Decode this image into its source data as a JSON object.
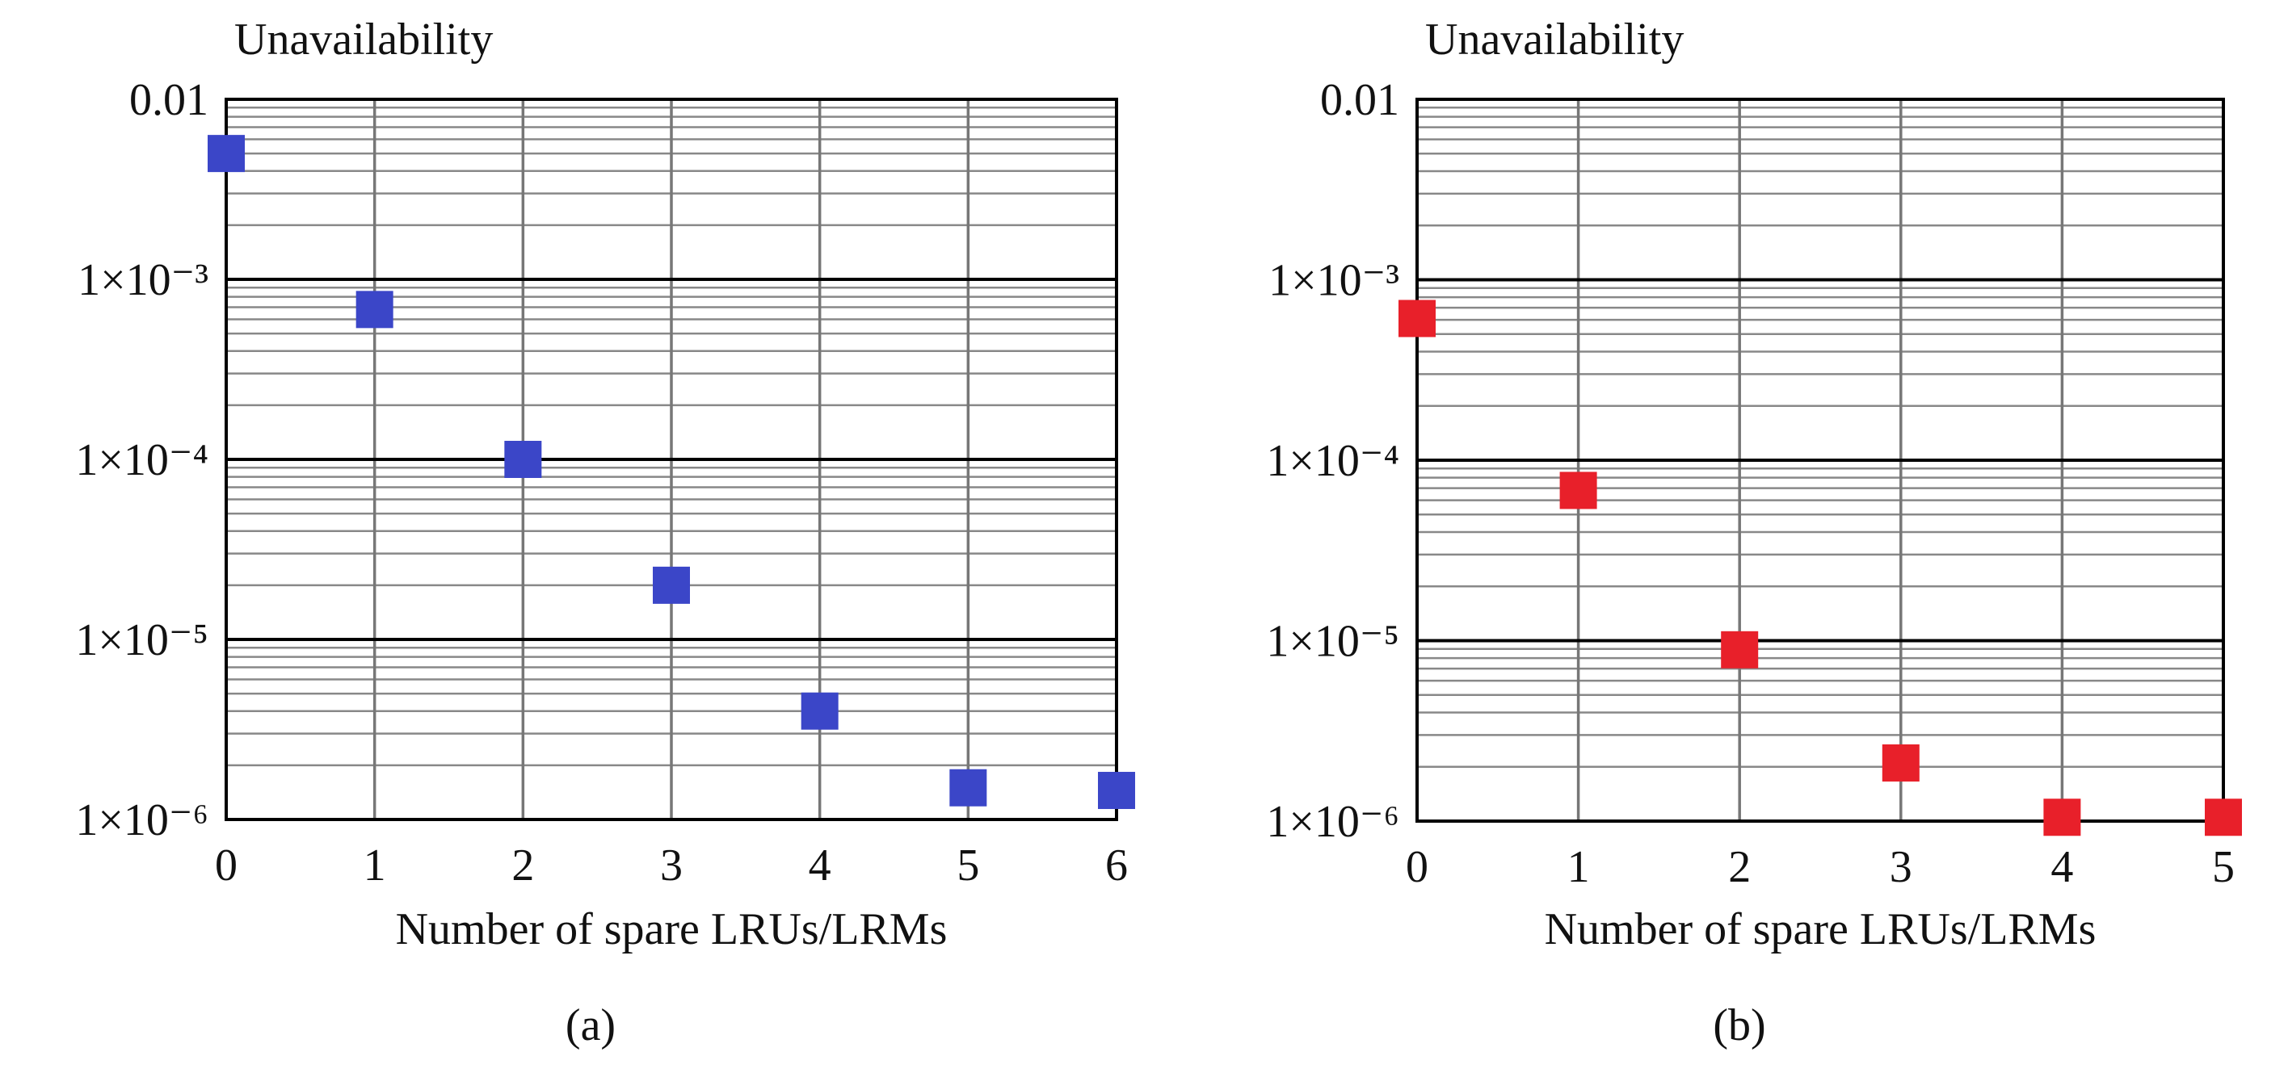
{
  "chart_data": [
    {
      "type": "scatter",
      "title": "Unavailability",
      "x_label": "Number of spare LRUs/LRMs",
      "caption": "(a)",
      "x": [
        0,
        1,
        2,
        3,
        4,
        5,
        6
      ],
      "series": [
        {
          "color": "#3b46c8",
          "values": [
            0.005,
            0.00068,
            0.0001,
            2e-05,
            4e-06,
            1.5e-06,
            1.45e-06
          ]
        }
      ],
      "xlim": [
        0,
        6
      ],
      "xticks": [
        0,
        1,
        2,
        3,
        4,
        5,
        6
      ],
      "ylim": [
        1e-06,
        0.01
      ],
      "log_y": true,
      "grid": true,
      "yticks": [
        {
          "value": 1e-06,
          "label": "1×10⁻⁶"
        },
        {
          "value": 1e-05,
          "label": "1×10⁻⁵"
        },
        {
          "value": 0.0001,
          "label": "1×10⁻⁴"
        },
        {
          "value": 0.001,
          "label": "1×10⁻³"
        },
        0.01
      ]
    },
    {
      "type": "scatter",
      "title": "Unavailability",
      "x_label": "Number of spare LRUs/LRMs",
      "caption": "(b)",
      "x": [
        0,
        1,
        2,
        3,
        4,
        5
      ],
      "series": [
        {
          "color": "#e8202a",
          "values": [
            0.00061,
            6.8e-05,
            8.9e-06,
            2.1e-06,
            1.05e-06,
            1.05e-06
          ]
        }
      ],
      "xlim": [
        0,
        5
      ],
      "xticks": [
        0,
        1,
        2,
        3,
        4,
        5
      ],
      "ylim": [
        1e-06,
        0.01
      ],
      "log_y": true,
      "grid": true,
      "yticks": [
        {
          "value": 1e-06,
          "label": "1×10⁻⁶"
        },
        {
          "value": 1e-05,
          "label": "1×10⁻⁵"
        },
        {
          "value": 0.0001,
          "label": "1×10⁻⁴"
        },
        {
          "value": 0.001,
          "label": "1×10⁻³"
        },
        0.01
      ]
    }
  ]
}
